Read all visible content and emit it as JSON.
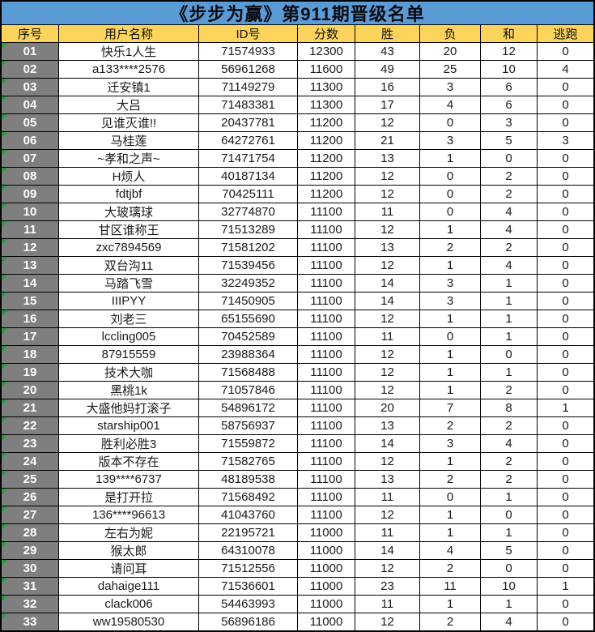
{
  "title": "《步步为赢》第911期晋级名单",
  "columns": [
    "序号",
    "用户名称",
    "ID号",
    "分数",
    "胜",
    "负",
    "和",
    "逃跑"
  ],
  "colors": {
    "title_bg": "#5B9BD5",
    "header_bg": "#FCD45C",
    "serial_bg": "#7F7F7F",
    "serial_text": "#FFFFFF",
    "grid_line": "#000000",
    "cell_bg": "#FFFFFF",
    "comment_triangle": "#21A038"
  },
  "rows": [
    {
      "no": "01",
      "name": "快乐1人生",
      "id": "71574933",
      "score": "12300",
      "win": "43",
      "loss": "20",
      "draw": "12",
      "escape": "0"
    },
    {
      "no": "02",
      "name": "a133****2576",
      "id": "56961268",
      "score": "11600",
      "win": "49",
      "loss": "25",
      "draw": "10",
      "escape": "4"
    },
    {
      "no": "03",
      "name": "迁安镇1",
      "id": "71149279",
      "score": "11300",
      "win": "16",
      "loss": "3",
      "draw": "6",
      "escape": "0"
    },
    {
      "no": "04",
      "name": "大吕",
      "id": "71483381",
      "score": "11300",
      "win": "17",
      "loss": "4",
      "draw": "6",
      "escape": "0"
    },
    {
      "no": "05",
      "name": "见谁灭谁!!",
      "id": "20437781",
      "score": "11200",
      "win": "12",
      "loss": "0",
      "draw": "3",
      "escape": "0"
    },
    {
      "no": "06",
      "name": "马桂莲",
      "id": "64272761",
      "score": "11200",
      "win": "21",
      "loss": "3",
      "draw": "5",
      "escape": "3"
    },
    {
      "no": "07",
      "name": "~孝和之声~",
      "id": "71471754",
      "score": "11200",
      "win": "13",
      "loss": "1",
      "draw": "0",
      "escape": "0"
    },
    {
      "no": "08",
      "name": "H烦人",
      "id": "40187134",
      "score": "11200",
      "win": "12",
      "loss": "0",
      "draw": "2",
      "escape": "0"
    },
    {
      "no": "09",
      "name": "fdtjbf",
      "id": "70425111",
      "score": "11200",
      "win": "12",
      "loss": "0",
      "draw": "2",
      "escape": "0"
    },
    {
      "no": "10",
      "name": "大玻璃球",
      "id": "32774870",
      "score": "11100",
      "win": "11",
      "loss": "0",
      "draw": "4",
      "escape": "0"
    },
    {
      "no": "11",
      "name": "甘区谁称王",
      "id": "71513289",
      "score": "11100",
      "win": "12",
      "loss": "1",
      "draw": "4",
      "escape": "0"
    },
    {
      "no": "12",
      "name": "zxc7894569",
      "id": "71581202",
      "score": "11100",
      "win": "13",
      "loss": "2",
      "draw": "2",
      "escape": "0"
    },
    {
      "no": "13",
      "name": "双台沟11",
      "id": "71539456",
      "score": "11100",
      "win": "12",
      "loss": "1",
      "draw": "4",
      "escape": "0"
    },
    {
      "no": "14",
      "name": "马踏飞雪",
      "id": "32249352",
      "score": "11100",
      "win": "14",
      "loss": "3",
      "draw": "1",
      "escape": "0"
    },
    {
      "no": "15",
      "name": "IIIPYY",
      "id": "71450905",
      "score": "11100",
      "win": "14",
      "loss": "3",
      "draw": "1",
      "escape": "0"
    },
    {
      "no": "16",
      "name": "刘老三",
      "id": "65155690",
      "score": "11100",
      "win": "12",
      "loss": "1",
      "draw": "1",
      "escape": "0"
    },
    {
      "no": "17",
      "name": "lccling005",
      "id": "70452589",
      "score": "11100",
      "win": "11",
      "loss": "0",
      "draw": "1",
      "escape": "0"
    },
    {
      "no": "18",
      "name": "87915559",
      "id": "23988364",
      "score": "11100",
      "win": "12",
      "loss": "1",
      "draw": "0",
      "escape": "0"
    },
    {
      "no": "19",
      "name": "技术大咖",
      "id": "71568488",
      "score": "11100",
      "win": "12",
      "loss": "1",
      "draw": "1",
      "escape": "0"
    },
    {
      "no": "20",
      "name": "黑桃1k",
      "id": "71057846",
      "score": "11100",
      "win": "12",
      "loss": "1",
      "draw": "2",
      "escape": "0"
    },
    {
      "no": "21",
      "name": "大盛他妈打滚子",
      "id": "54896172",
      "score": "11100",
      "win": "20",
      "loss": "7",
      "draw": "8",
      "escape": "1"
    },
    {
      "no": "22",
      "name": "starship001",
      "id": "58756937",
      "score": "11100",
      "win": "13",
      "loss": "2",
      "draw": "2",
      "escape": "0"
    },
    {
      "no": "23",
      "name": "胜利必胜3",
      "id": "71559872",
      "score": "11100",
      "win": "14",
      "loss": "3",
      "draw": "4",
      "escape": "0"
    },
    {
      "no": "24",
      "name": "版本不存在",
      "id": "71582765",
      "score": "11100",
      "win": "12",
      "loss": "1",
      "draw": "2",
      "escape": "0"
    },
    {
      "no": "25",
      "name": "139****6737",
      "id": "48189538",
      "score": "11100",
      "win": "13",
      "loss": "2",
      "draw": "2",
      "escape": "0"
    },
    {
      "no": "26",
      "name": "是打开拉",
      "id": "71568492",
      "score": "11100",
      "win": "11",
      "loss": "0",
      "draw": "1",
      "escape": "0"
    },
    {
      "no": "27",
      "name": "136****96613",
      "id": "41043760",
      "score": "11100",
      "win": "12",
      "loss": "1",
      "draw": "0",
      "escape": "0"
    },
    {
      "no": "28",
      "name": "左右为妮",
      "id": "22195721",
      "score": "11000",
      "win": "11",
      "loss": "1",
      "draw": "1",
      "escape": "0"
    },
    {
      "no": "29",
      "name": "猴太郎",
      "id": "64310078",
      "score": "11000",
      "win": "14",
      "loss": "4",
      "draw": "5",
      "escape": "0"
    },
    {
      "no": "30",
      "name": "请问耳",
      "id": "71512556",
      "score": "11000",
      "win": "12",
      "loss": "2",
      "draw": "0",
      "escape": "0"
    },
    {
      "no": "31",
      "name": "dahaige111",
      "id": "71536601",
      "score": "11000",
      "win": "23",
      "loss": "11",
      "draw": "10",
      "escape": "1"
    },
    {
      "no": "32",
      "name": "clack006",
      "id": "54463993",
      "score": "11000",
      "win": "11",
      "loss": "1",
      "draw": "1",
      "escape": "0"
    },
    {
      "no": "33",
      "name": "ww19580530",
      "id": "56896186",
      "score": "11000",
      "win": "12",
      "loss": "2",
      "draw": "4",
      "escape": "0"
    }
  ]
}
